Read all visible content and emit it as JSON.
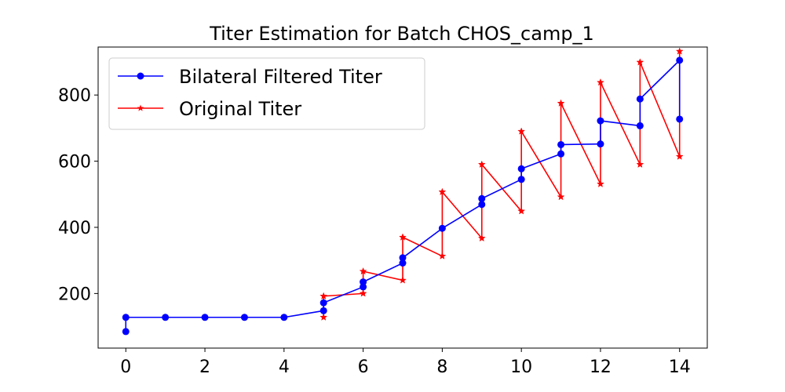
{
  "chart_data": {
    "type": "line",
    "title": "Titer Estimation for Batch CHOS_camp_1",
    "xlabel": "",
    "ylabel": "",
    "xlim": [
      -0.7,
      14.7
    ],
    "ylim": [
      35,
      945
    ],
    "xticks": [
      0,
      2,
      4,
      6,
      8,
      10,
      12,
      14
    ],
    "yticks": [
      200,
      400,
      600,
      800
    ],
    "grid": false,
    "legend_position": "top-left",
    "series": [
      {
        "name": "Bilateral Filtered Titer",
        "color": "#0000ff",
        "marker": "circle",
        "points": [
          [
            0,
            85
          ],
          [
            0,
            128
          ],
          [
            1,
            128
          ],
          [
            2,
            128
          ],
          [
            3,
            128
          ],
          [
            4,
            128
          ],
          [
            5,
            148
          ],
          [
            5,
            172
          ],
          [
            6,
            220
          ],
          [
            6,
            235
          ],
          [
            7,
            292
          ],
          [
            7,
            308
          ],
          [
            8,
            397
          ],
          [
            9,
            469
          ],
          [
            9,
            487
          ],
          [
            10,
            545
          ],
          [
            10,
            577
          ],
          [
            11,
            622
          ],
          [
            11,
            650
          ],
          [
            12,
            652
          ],
          [
            12,
            722
          ],
          [
            13,
            707
          ],
          [
            13,
            788
          ],
          [
            14,
            905
          ],
          [
            14,
            727
          ]
        ]
      },
      {
        "name": "Original Titer",
        "color": "#ff0000",
        "marker": "star",
        "points": [
          [
            5,
            128
          ],
          [
            5,
            192
          ],
          [
            6,
            200
          ],
          [
            6,
            267
          ],
          [
            7,
            240
          ],
          [
            7,
            370
          ],
          [
            8,
            313
          ],
          [
            8,
            507
          ],
          [
            9,
            367
          ],
          [
            9,
            590
          ],
          [
            10,
            449
          ],
          [
            10,
            690
          ],
          [
            11,
            492
          ],
          [
            11,
            775
          ],
          [
            12,
            531
          ],
          [
            12,
            838
          ],
          [
            13,
            590
          ],
          [
            13,
            899
          ],
          [
            14,
            614
          ],
          [
            14,
            932
          ]
        ]
      }
    ]
  }
}
